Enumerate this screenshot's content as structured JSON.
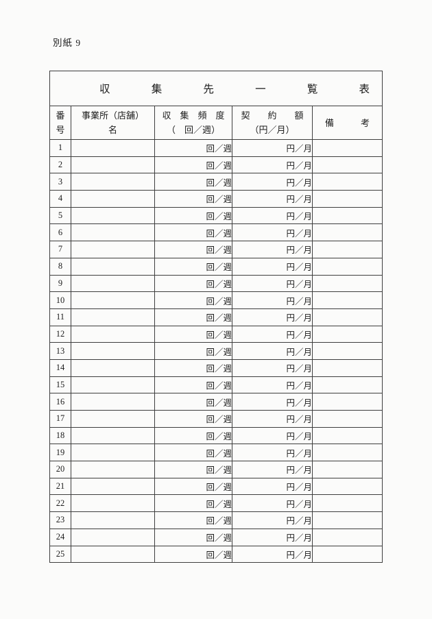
{
  "page": {
    "attachment_label": "別紙 9"
  },
  "colors": {
    "page_background": "#fbfbfa",
    "border": "#3d3d3d",
    "text": "#1c1c1c"
  },
  "table": {
    "title": "収集先一覧表",
    "headers": [
      {
        "line1": "番",
        "line2": "号"
      },
      {
        "line1": "事業所（店舗）",
        "line2": "名"
      },
      {
        "line1": "収　集　頻　度",
        "line2": "（　回／週）"
      },
      {
        "line1": "契　　約　　額",
        "line2": "（円／月）"
      },
      {
        "line1": "備　　　考",
        "line2": ""
      }
    ],
    "rows": [
      {
        "no": "1",
        "name": "",
        "frequency": "回／週",
        "amount": "円／月",
        "remarks": ""
      },
      {
        "no": "2",
        "name": "",
        "frequency": "回／週",
        "amount": "円／月",
        "remarks": ""
      },
      {
        "no": "3",
        "name": "",
        "frequency": "回／週",
        "amount": "円／月",
        "remarks": ""
      },
      {
        "no": "4",
        "name": "",
        "frequency": "回／週",
        "amount": "円／月",
        "remarks": ""
      },
      {
        "no": "5",
        "name": "",
        "frequency": "回／週",
        "amount": "円／月",
        "remarks": ""
      },
      {
        "no": "6",
        "name": "",
        "frequency": "回／週",
        "amount": "円／月",
        "remarks": ""
      },
      {
        "no": "7",
        "name": "",
        "frequency": "回／週",
        "amount": "円／月",
        "remarks": ""
      },
      {
        "no": "8",
        "name": "",
        "frequency": "回／週",
        "amount": "円／月",
        "remarks": ""
      },
      {
        "no": "9",
        "name": "",
        "frequency": "回／週",
        "amount": "円／月",
        "remarks": ""
      },
      {
        "no": "10",
        "name": "",
        "frequency": "回／週",
        "amount": "円／月",
        "remarks": ""
      },
      {
        "no": "11",
        "name": "",
        "frequency": "回／週",
        "amount": "円／月",
        "remarks": ""
      },
      {
        "no": "12",
        "name": "",
        "frequency": "回／週",
        "amount": "円／月",
        "remarks": ""
      },
      {
        "no": "13",
        "name": "",
        "frequency": "回／週",
        "amount": "円／月",
        "remarks": ""
      },
      {
        "no": "14",
        "name": "",
        "frequency": "回／週",
        "amount": "円／月",
        "remarks": ""
      },
      {
        "no": "15",
        "name": "",
        "frequency": "回／週",
        "amount": "円／月",
        "remarks": ""
      },
      {
        "no": "16",
        "name": "",
        "frequency": "回／週",
        "amount": "円／月",
        "remarks": ""
      },
      {
        "no": "17",
        "name": "",
        "frequency": "回／週",
        "amount": "円／月",
        "remarks": ""
      },
      {
        "no": "18",
        "name": "",
        "frequency": "回／週",
        "amount": "円／月",
        "remarks": ""
      },
      {
        "no": "19",
        "name": "",
        "frequency": "回／週",
        "amount": "円／月",
        "remarks": ""
      },
      {
        "no": "20",
        "name": "",
        "frequency": "回／週",
        "amount": "円／月",
        "remarks": ""
      },
      {
        "no": "21",
        "name": "",
        "frequency": "回／週",
        "amount": "円／月",
        "remarks": ""
      },
      {
        "no": "22",
        "name": "",
        "frequency": "回／週",
        "amount": "円／月",
        "remarks": ""
      },
      {
        "no": "23",
        "name": "",
        "frequency": "回／週",
        "amount": "円／月",
        "remarks": ""
      },
      {
        "no": "24",
        "name": "",
        "frequency": "回／週",
        "amount": "円／月",
        "remarks": ""
      },
      {
        "no": "25",
        "name": "",
        "frequency": "回／週",
        "amount": "円／月",
        "remarks": ""
      }
    ]
  }
}
